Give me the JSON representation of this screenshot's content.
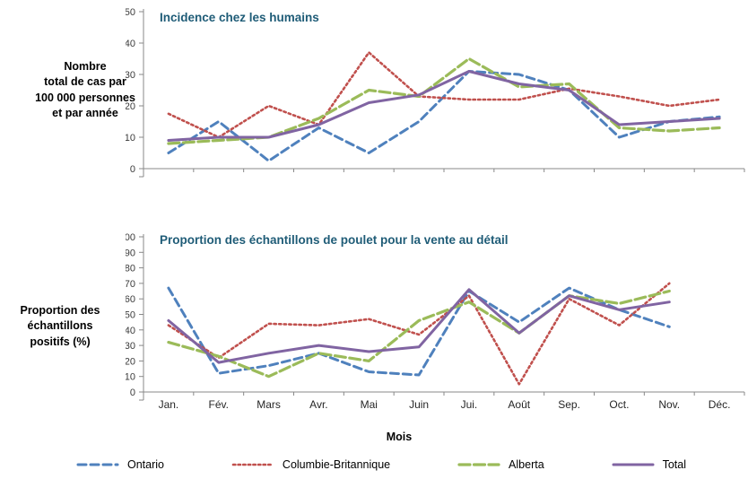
{
  "figure": {
    "xlabel": "Mois",
    "legend_position": "bottom"
  },
  "chart_data": [
    {
      "type": "line",
      "title": "Incidence chez les humains",
      "ylabel": "Nombre\ntotal de cas par\n100 000 personnes\net par année",
      "ylim": [
        0,
        50
      ],
      "ytick": 10,
      "grid": false,
      "categories": [
        "Jan.",
        "Fév.",
        "Mars",
        "Avr.",
        "Mai",
        "Juin",
        "Jui.",
        "Août",
        "Sep.",
        "Oct.",
        "Nov.",
        "Déc."
      ],
      "series": [
        {
          "name": "Ontario",
          "color": "#4F81BD",
          "dash": "dashed",
          "width": 3,
          "values": [
            5,
            15,
            2.5,
            13,
            5,
            15,
            31,
            30,
            25,
            10,
            15,
            16.5
          ]
        },
        {
          "name": "Columbie-Britannique",
          "color": "#C0504D",
          "dash": "dotted",
          "width": 2.6,
          "values": [
            17.5,
            10,
            20,
            14,
            37,
            23,
            22,
            22,
            25.5,
            23,
            20,
            22
          ]
        },
        {
          "name": "Alberta",
          "color": "#9BBB59",
          "dash": "longdash",
          "width": 3.2,
          "values": [
            8,
            9,
            10,
            16,
            25,
            23,
            35,
            26,
            27,
            13,
            12,
            13
          ]
        },
        {
          "name": "Total",
          "color": "#8064A2",
          "dash": "solid",
          "width": 3,
          "values": [
            9,
            10,
            10,
            14,
            21,
            23.5,
            31,
            27,
            25,
            14,
            15,
            16
          ]
        }
      ]
    },
    {
      "type": "line",
      "title": "Proportion des échantillons de poulet pour la vente au détail",
      "ylabel": "Proportion des\néchantillons\npositifs (%)",
      "xlabel": "Mois",
      "ylim": [
        0,
        100
      ],
      "ytick": 10,
      "grid": false,
      "categories": [
        "Jan.",
        "Fév.",
        "Mars",
        "Avr.",
        "Mai",
        "Juin",
        "Jui.",
        "Août",
        "Sep.",
        "Oct.",
        "Nov.",
        "Déc."
      ],
      "series": [
        {
          "name": "Ontario",
          "color": "#4F81BD",
          "dash": "dashed",
          "width": 3,
          "values": [
            67,
            12,
            17,
            25,
            13,
            11,
            65,
            45,
            67,
            53,
            42,
            null
          ]
        },
        {
          "name": "Columbie-Britannique",
          "color": "#C0504D",
          "dash": "dotted",
          "width": 2.6,
          "values": [
            43,
            22,
            44,
            43,
            47,
            37,
            62,
            5,
            60,
            43,
            70,
            null
          ]
        },
        {
          "name": "Alberta",
          "color": "#9BBB59",
          "dash": "longdash",
          "width": 3.2,
          "values": [
            32,
            23,
            10,
            25,
            20,
            46,
            58,
            38,
            62,
            57,
            65,
            null
          ]
        },
        {
          "name": "Total",
          "color": "#8064A2",
          "dash": "solid",
          "width": 3,
          "values": [
            46,
            19,
            25,
            30,
            26,
            29,
            66,
            38,
            62,
            53,
            58,
            null
          ]
        }
      ]
    }
  ],
  "legend": {
    "items": [
      "Ontario",
      "Columbie-Britannique",
      "Alberta",
      "Total"
    ]
  },
  "colors": {
    "axis": "#898989",
    "title": "#1F5C77"
  }
}
